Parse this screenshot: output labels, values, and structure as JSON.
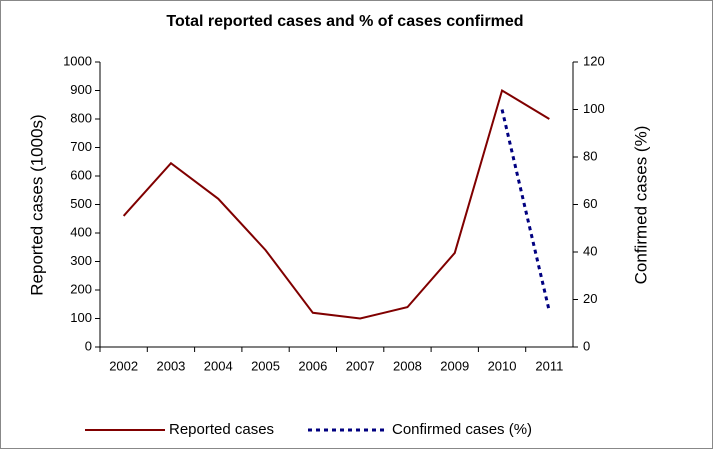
{
  "chart_data": {
    "type": "line",
    "title": "Total reported cases and % of cases confirmed",
    "ylabel": "Reported cases (1000s)",
    "y2label": "Confirmed cases (%)",
    "categories": [
      "2002",
      "2003",
      "2004",
      "2005",
      "2006",
      "2007",
      "2008",
      "2009",
      "2010",
      "2011"
    ],
    "series": [
      {
        "name": "Reported cases",
        "color": "#800000",
        "values": [
          460,
          645,
          520,
          340,
          120,
          100,
          140,
          330,
          900,
          800
        ]
      },
      {
        "name": "Confirmed cases (%)",
        "color": "#000080",
        "axis": "y2",
        "dashed": true,
        "values": [
          null,
          null,
          null,
          null,
          null,
          null,
          null,
          null,
          100,
          15
        ]
      }
    ],
    "ylim": [
      0,
      1000
    ],
    "yticks": [
      0,
      100,
      200,
      300,
      400,
      500,
      600,
      700,
      800,
      900,
      1000
    ],
    "y2lim": [
      0,
      120
    ],
    "y2ticks": [
      0,
      20,
      40,
      60,
      80,
      100,
      120
    ],
    "legend": "bottom"
  }
}
